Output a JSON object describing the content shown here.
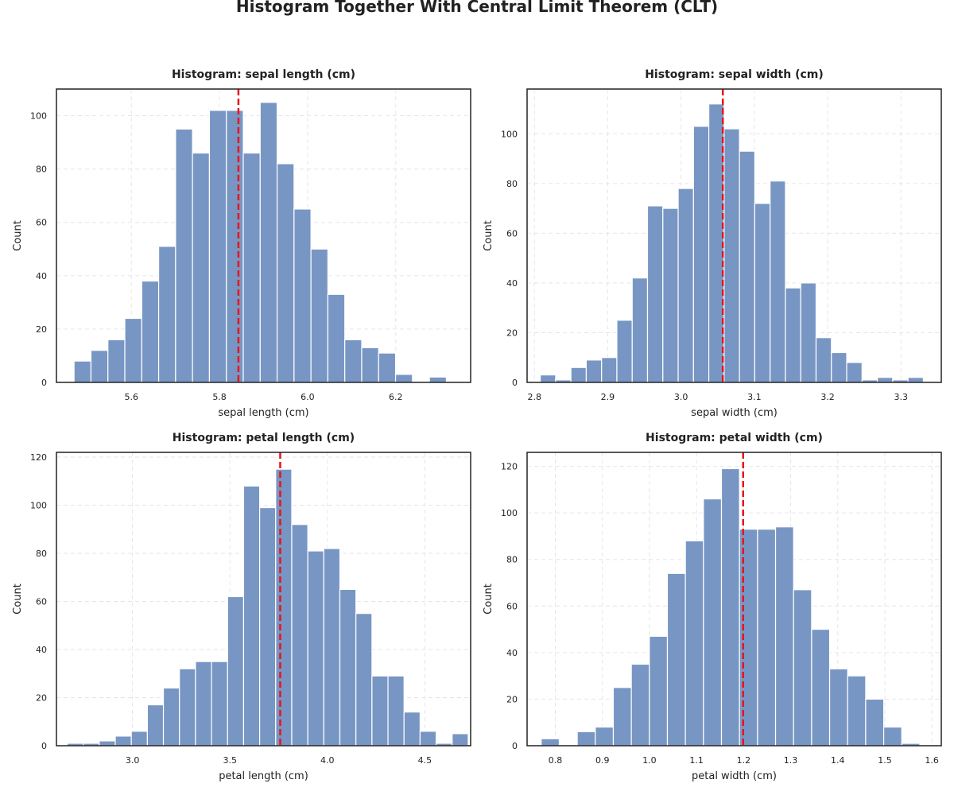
{
  "figure": {
    "title": "Histogram Together With Central Limit Theorem (CLT)"
  },
  "colors": {
    "bar": "#7896c4",
    "bar_edge": "#ffffff",
    "mean_line": "#e8141c",
    "grid": "#e6e6e6",
    "axes": "#222222"
  },
  "chart_data": [
    {
      "type": "bar",
      "title": "Histogram: sepal length (cm)",
      "xlabel": "sepal length (cm)",
      "ylabel": "Count",
      "grid": true,
      "xlim": [
        5.43,
        6.37
      ],
      "ylim": [
        0,
        110
      ],
      "xticks": [
        5.6,
        5.8,
        6.0,
        6.2
      ],
      "xtick_labels": [
        "5.6",
        "5.8",
        "6.0",
        "6.2"
      ],
      "yticks": [
        0,
        20,
        40,
        60,
        80,
        100
      ],
      "ytick_labels": [
        "0",
        "20",
        "40",
        "60",
        "80",
        "100"
      ],
      "bin_start": 5.47,
      "bin_width": 0.0384,
      "counts": [
        8,
        12,
        16,
        24,
        38,
        51,
        95,
        86,
        102,
        102,
        86,
        105,
        82,
        65,
        50,
        33,
        16,
        13,
        11,
        3,
        0,
        2
      ],
      "mean": 5.843
    },
    {
      "type": "bar",
      "title": "Histogram: sepal width (cm)",
      "xlabel": "sepal width (cm)",
      "ylabel": "Count",
      "grid": true,
      "xlim": [
        2.79,
        3.355
      ],
      "ylim": [
        0,
        118
      ],
      "xticks": [
        2.8,
        2.9,
        3.0,
        3.1,
        3.2,
        3.3
      ],
      "xtick_labels": [
        "2.8",
        "2.9",
        "3.0",
        "3.1",
        "3.2",
        "3.3"
      ],
      "yticks": [
        0,
        20,
        40,
        60,
        80,
        100
      ],
      "ytick_labels": [
        "0",
        "20",
        "40",
        "60",
        "80",
        "100"
      ],
      "bin_start": 2.808,
      "bin_width": 0.0209,
      "counts": [
        3,
        1,
        6,
        9,
        10,
        25,
        42,
        71,
        70,
        78,
        103,
        112,
        102,
        93,
        72,
        81,
        38,
        40,
        18,
        12,
        8,
        1,
        2,
        1,
        2
      ],
      "mean": 3.057
    },
    {
      "type": "bar",
      "title": "Histogram: petal length (cm)",
      "xlabel": "petal length (cm)",
      "ylabel": "Count",
      "grid": true,
      "xlim": [
        2.61,
        4.735
      ],
      "ylim": [
        0,
        122
      ],
      "xticks": [
        3.0,
        3.5,
        4.0,
        4.5
      ],
      "xtick_labels": [
        "3.0",
        "3.5",
        "4.0",
        "4.5"
      ],
      "yticks": [
        0,
        20,
        40,
        60,
        80,
        100,
        120
      ],
      "ytick_labels": [
        "0",
        "20",
        "40",
        "60",
        "80",
        "100",
        "120"
      ],
      "bin_start": 2.665,
      "bin_width": 0.0823,
      "counts": [
        1,
        1,
        2,
        4,
        6,
        17,
        24,
        32,
        35,
        35,
        62,
        108,
        99,
        115,
        92,
        81,
        82,
        65,
        55,
        29,
        29,
        14,
        6,
        1,
        5
      ],
      "mean": 3.758
    },
    {
      "type": "bar",
      "title": "Histogram: petal width (cm)",
      "xlabel": "petal width (cm)",
      "ylabel": "Count",
      "grid": true,
      "xlim": [
        0.74,
        1.62
      ],
      "ylim": [
        0,
        126
      ],
      "xticks": [
        0.8,
        0.9,
        1.0,
        1.1,
        1.2,
        1.3,
        1.4,
        1.5,
        1.6
      ],
      "xtick_labels": [
        "0.8",
        "0.9",
        "1.0",
        "1.1",
        "1.2",
        "1.3",
        "1.4",
        "1.5",
        "1.6"
      ],
      "yticks": [
        0,
        20,
        40,
        60,
        80,
        100,
        120
      ],
      "ytick_labels": [
        "0",
        "20",
        "40",
        "60",
        "80",
        "100",
        "120"
      ],
      "bin_start": 0.77,
      "bin_width": 0.0383,
      "counts": [
        3,
        0,
        6,
        8,
        25,
        35,
        47,
        74,
        88,
        106,
        119,
        93,
        93,
        94,
        67,
        50,
        33,
        30,
        20,
        8,
        1
      ],
      "mean": 1.199
    }
  ]
}
